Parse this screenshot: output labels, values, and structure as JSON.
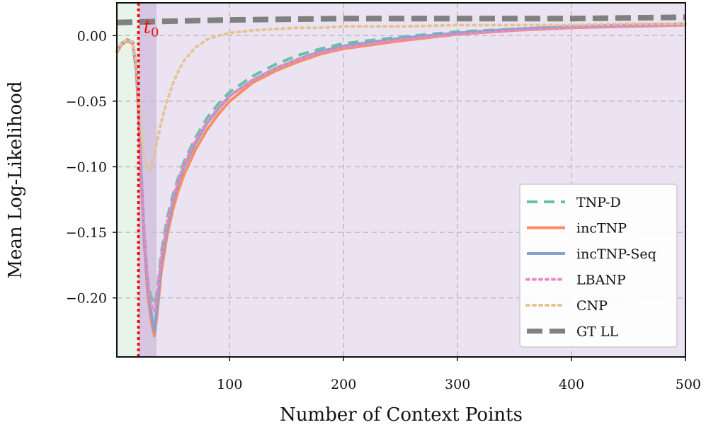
{
  "chart_data": {
    "type": "line",
    "title": "",
    "xlabel": "Number of Context Points",
    "ylabel": "Mean Log-Likelihood",
    "xlim": [
      1,
      500
    ],
    "ylim": [
      -0.245,
      0.025
    ],
    "xticks": [
      100,
      200,
      300,
      400,
      500
    ],
    "yticks": [
      0.0,
      -0.05,
      -0.1,
      -0.15,
      -0.2
    ],
    "xtick_labels": [
      "100",
      "200",
      "300",
      "400",
      "500"
    ],
    "ytick_labels": [
      "0.00",
      "−0.05",
      "−0.10",
      "−0.15",
      "−0.20"
    ],
    "grid": true,
    "legend_position": "lower right",
    "annotations": {
      "t0_x": 20,
      "t0_text": "t",
      "t0_subscript": "0",
      "t0_color": "#ee1111"
    },
    "shaded_regions": [
      {
        "x0": 1,
        "x1": 20,
        "color": "#e8f3ea"
      },
      {
        "x0": 20,
        "x1": 36,
        "color": "#d6c6e2"
      },
      {
        "x0": 36,
        "x1": 500,
        "color": "#ebe3f1"
      }
    ],
    "series": [
      {
        "name": "TNP-D",
        "color": "#66c2a5",
        "style": "dashed",
        "width": 4,
        "x": [
          1,
          5,
          10,
          15,
          18,
          20,
          22,
          25,
          28,
          30,
          32,
          34,
          36,
          38,
          40,
          45,
          50,
          55,
          60,
          70,
          80,
          90,
          100,
          120,
          140,
          160,
          180,
          200,
          250,
          300,
          350,
          400,
          450,
          500
        ],
        "y": [
          -0.012,
          -0.006,
          -0.003,
          -0.005,
          -0.025,
          -0.055,
          -0.095,
          -0.15,
          -0.185,
          -0.196,
          -0.202,
          -0.205,
          -0.198,
          -0.183,
          -0.165,
          -0.14,
          -0.122,
          -0.108,
          -0.096,
          -0.078,
          -0.063,
          -0.052,
          -0.043,
          -0.031,
          -0.022,
          -0.015,
          -0.01,
          -0.006,
          -0.001,
          0.003,
          0.005,
          0.007,
          0.008,
          0.009
        ]
      },
      {
        "name": "incTNP",
        "color": "#fc8d62",
        "style": "solid",
        "width": 4,
        "x": [
          1,
          5,
          10,
          15,
          18,
          20,
          22,
          25,
          28,
          30,
          32,
          34,
          36,
          38,
          40,
          45,
          50,
          55,
          60,
          70,
          80,
          90,
          100,
          120,
          140,
          160,
          180,
          200,
          250,
          300,
          350,
          400,
          450,
          500
        ],
        "y": [
          -0.013,
          -0.007,
          -0.004,
          -0.006,
          -0.027,
          -0.058,
          -0.1,
          -0.158,
          -0.196,
          -0.21,
          -0.222,
          -0.229,
          -0.215,
          -0.198,
          -0.18,
          -0.153,
          -0.133,
          -0.118,
          -0.106,
          -0.087,
          -0.072,
          -0.06,
          -0.05,
          -0.036,
          -0.027,
          -0.02,
          -0.014,
          -0.01,
          -0.004,
          0.001,
          0.004,
          0.006,
          0.007,
          0.008
        ]
      },
      {
        "name": "incTNP-Seq",
        "color": "#8da0cb",
        "style": "solid",
        "width": 4,
        "x": [
          1,
          5,
          10,
          15,
          18,
          20,
          22,
          25,
          28,
          30,
          32,
          34,
          36,
          38,
          40,
          45,
          50,
          55,
          60,
          70,
          80,
          90,
          100,
          120,
          140,
          160,
          180,
          200,
          250,
          300,
          350,
          400,
          450,
          500
        ],
        "y": [
          -0.012,
          -0.006,
          -0.003,
          -0.005,
          -0.026,
          -0.056,
          -0.098,
          -0.155,
          -0.19,
          -0.205,
          -0.216,
          -0.226,
          -0.21,
          -0.192,
          -0.172,
          -0.147,
          -0.127,
          -0.112,
          -0.1,
          -0.082,
          -0.067,
          -0.056,
          -0.046,
          -0.034,
          -0.025,
          -0.018,
          -0.012,
          -0.008,
          -0.002,
          0.002,
          0.005,
          0.007,
          0.008,
          0.009
        ]
      },
      {
        "name": "LBANP",
        "color": "#e78ac3",
        "style": "dotted",
        "width": 4,
        "x": [
          1,
          5,
          10,
          15,
          18,
          20,
          22,
          25,
          28,
          30,
          32,
          34,
          36,
          38,
          40,
          45,
          50,
          55,
          60,
          70,
          80,
          90,
          100,
          120,
          140,
          160,
          180,
          200,
          250,
          300,
          350,
          400,
          450,
          500
        ],
        "y": [
          -0.012,
          -0.006,
          -0.003,
          -0.005,
          -0.025,
          -0.055,
          -0.096,
          -0.15,
          -0.186,
          -0.2,
          -0.208,
          -0.21,
          -0.2,
          -0.186,
          -0.168,
          -0.143,
          -0.125,
          -0.11,
          -0.098,
          -0.08,
          -0.066,
          -0.055,
          -0.046,
          -0.034,
          -0.025,
          -0.018,
          -0.013,
          -0.009,
          -0.003,
          0.001,
          0.004,
          0.006,
          0.007,
          0.008
        ]
      },
      {
        "name": "CNP",
        "color": "#e5c494",
        "style": "dotted",
        "width": 4,
        "x": [
          1,
          5,
          10,
          15,
          18,
          20,
          22,
          25,
          28,
          30,
          32,
          34,
          36,
          40,
          45,
          50,
          55,
          60,
          70,
          80,
          90,
          100,
          120,
          140,
          160,
          180,
          200,
          250,
          300,
          350,
          400,
          450,
          500
        ],
        "y": [
          -0.012,
          -0.006,
          -0.003,
          -0.005,
          -0.02,
          -0.045,
          -0.07,
          -0.094,
          -0.1,
          -0.103,
          -0.098,
          -0.092,
          -0.082,
          -0.066,
          -0.05,
          -0.037,
          -0.027,
          -0.019,
          -0.009,
          -0.003,
          0.0,
          0.002,
          0.004,
          0.005,
          0.006,
          0.006,
          0.007,
          0.007,
          0.008,
          0.008,
          0.008,
          0.009,
          0.009
        ]
      },
      {
        "name": "GT LL",
        "color": "#808080",
        "style": "gtdash",
        "width": 8,
        "x": [
          1,
          50,
          100,
          200,
          300,
          400,
          500
        ],
        "y": [
          0.01,
          0.011,
          0.012,
          0.013,
          0.013,
          0.013,
          0.014
        ]
      }
    ]
  }
}
